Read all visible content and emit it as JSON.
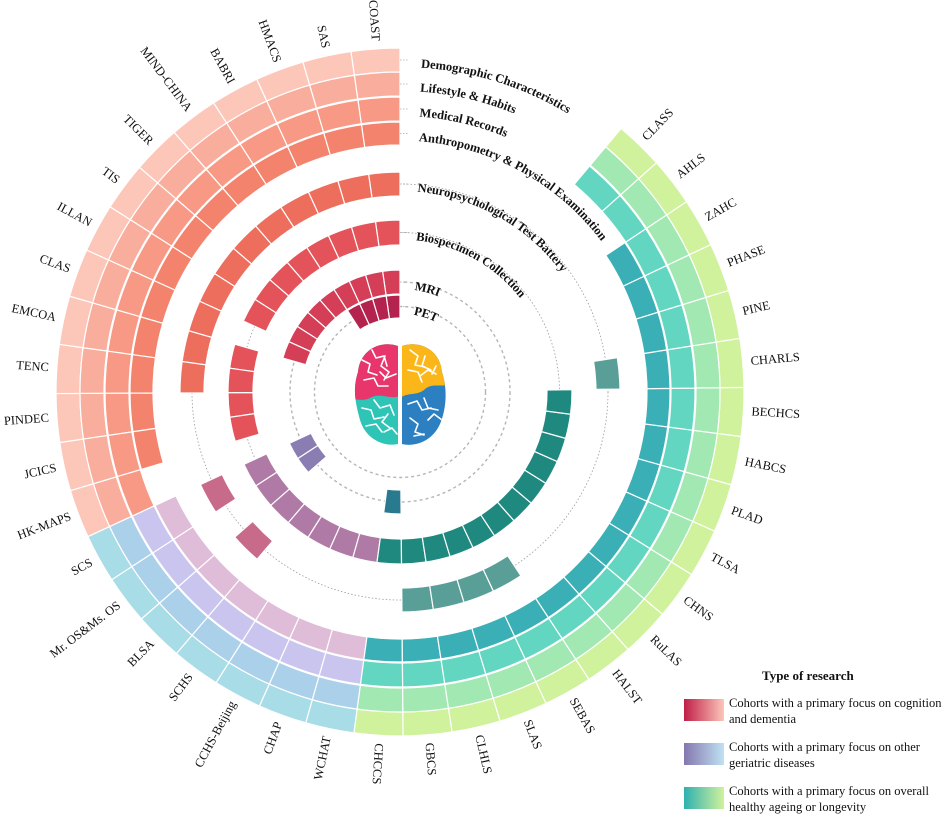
{
  "chart_data": {
    "type": "circular-heatmap",
    "cohorts": [
      {
        "name": "COAST",
        "group": "cognition"
      },
      {
        "name": "SAS",
        "group": "cognition"
      },
      {
        "name": "HMACS",
        "group": "cognition"
      },
      {
        "name": "BABRI",
        "group": "cognition"
      },
      {
        "name": "MIND-CHINA",
        "group": "cognition"
      },
      {
        "name": "TIGER",
        "group": "cognition"
      },
      {
        "name": "TIS",
        "group": "cognition"
      },
      {
        "name": "ILLAN",
        "group": "cognition"
      },
      {
        "name": "CLAS",
        "group": "cognition"
      },
      {
        "name": "EMCOA",
        "group": "cognition"
      },
      {
        "name": "TENC",
        "group": "cognition"
      },
      {
        "name": "PINDEC",
        "group": "cognition"
      },
      {
        "name": "JCICS",
        "group": "cognition"
      },
      {
        "name": "HK-MAPS",
        "group": "cognition"
      },
      {
        "name": "SCS",
        "group": "geriatric"
      },
      {
        "name": "Mr. OS&Ms. OS",
        "group": "geriatric"
      },
      {
        "name": "BLSA",
        "group": "geriatric"
      },
      {
        "name": "SCHS",
        "group": "geriatric"
      },
      {
        "name": "CCHS-Beijing",
        "group": "geriatric"
      },
      {
        "name": "CHAP",
        "group": "geriatric"
      },
      {
        "name": "WCHAT",
        "group": "geriatric"
      },
      {
        "name": "CHCCS",
        "group": "ageing"
      },
      {
        "name": "GBCS",
        "group": "ageing"
      },
      {
        "name": "CLHLS",
        "group": "ageing"
      },
      {
        "name": "SLAS",
        "group": "ageing"
      },
      {
        "name": "SEBAS",
        "group": "ageing"
      },
      {
        "name": "HALST",
        "group": "ageing"
      },
      {
        "name": "RuLAS",
        "group": "ageing"
      },
      {
        "name": "CHNS",
        "group": "ageing"
      },
      {
        "name": "TLSA",
        "group": "ageing"
      },
      {
        "name": "PLAD",
        "group": "ageing"
      },
      {
        "name": "HABCS",
        "group": "ageing"
      },
      {
        "name": "BECHCS",
        "group": "ageing"
      },
      {
        "name": "CHARLS",
        "group": "ageing"
      },
      {
        "name": "PINE",
        "group": "ageing"
      },
      {
        "name": "PHASE",
        "group": "ageing"
      },
      {
        "name": "ZAHC",
        "group": "ageing"
      },
      {
        "name": "AHLS",
        "group": "ageing"
      },
      {
        "name": "CLASS",
        "group": "ageing"
      }
    ],
    "tracks": [
      {
        "name": "Demographic Characteristics",
        "included": "all"
      },
      {
        "name": "Lifestyle & Habits",
        "included": "all"
      },
      {
        "name": "Medical Records",
        "included": "all"
      },
      {
        "name": "Anthropometry & Physical Examination",
        "excluded": [
          13,
          37,
          38
        ]
      },
      {
        "name": "Neuropsychological Test Battery",
        "included": [
          0,
          1,
          2,
          3,
          4,
          5,
          6,
          7,
          8,
          9,
          10,
          14,
          16,
          22,
          23,
          24,
          25,
          33
        ]
      },
      {
        "name": "Biospecimen Collection",
        "included": [
          0,
          1,
          2,
          3,
          4,
          5,
          6,
          7,
          9,
          10,
          11,
          12,
          14,
          15,
          16,
          17,
          18,
          19,
          20,
          21,
          22,
          23,
          24,
          25,
          26,
          27,
          28,
          29,
          30,
          31,
          32
        ]
      },
      {
        "name": "MRI",
        "included": [
          0,
          1,
          2,
          3,
          4,
          5,
          6,
          7,
          8,
          14,
          15,
          21
        ]
      },
      {
        "name": "PET",
        "included": [
          0,
          1,
          2,
          3
        ]
      }
    ],
    "colors": {
      "cognition": [
        "#fcc6b9",
        "#f9ae9d",
        "#f79985",
        "#f4836e",
        "#ee6e5e",
        "#e4535a",
        "#d43e56",
        "#b3234d"
      ],
      "geriatric": [
        "#a8dce6",
        "#abd0e9",
        "#c9c5ee",
        "#dfbcd8",
        "#c86a8a",
        "#b07aa6",
        "#8a7db2",
        "#8a7db2"
      ],
      "ageing": [
        "#d0f29d",
        "#a2e8b2",
        "#62d6c0",
        "#3bafb6",
        "#599f97",
        "#1f897f",
        "#2a7a8f",
        "#2a7a8f"
      ]
    },
    "brain_colors": [
      "#e8356b",
      "#fbb719",
      "#2ec4b6",
      "#2c7fc0"
    ]
  },
  "legend": {
    "title": "Type of research",
    "items": [
      {
        "label": "Cohorts with a primary focus on cognition and dementia",
        "from": "#bf1f48",
        "to": "#fcc6b9"
      },
      {
        "label": "Cohorts with a primary focus on other geriatric diseases",
        "from": "#8577ae",
        "to": "#bfe2f3"
      },
      {
        "label": "Cohorts with a primary focus on overall healthy ageing or longevity",
        "from": "#2fb0b0",
        "to": "#d0f29d"
      }
    ]
  }
}
